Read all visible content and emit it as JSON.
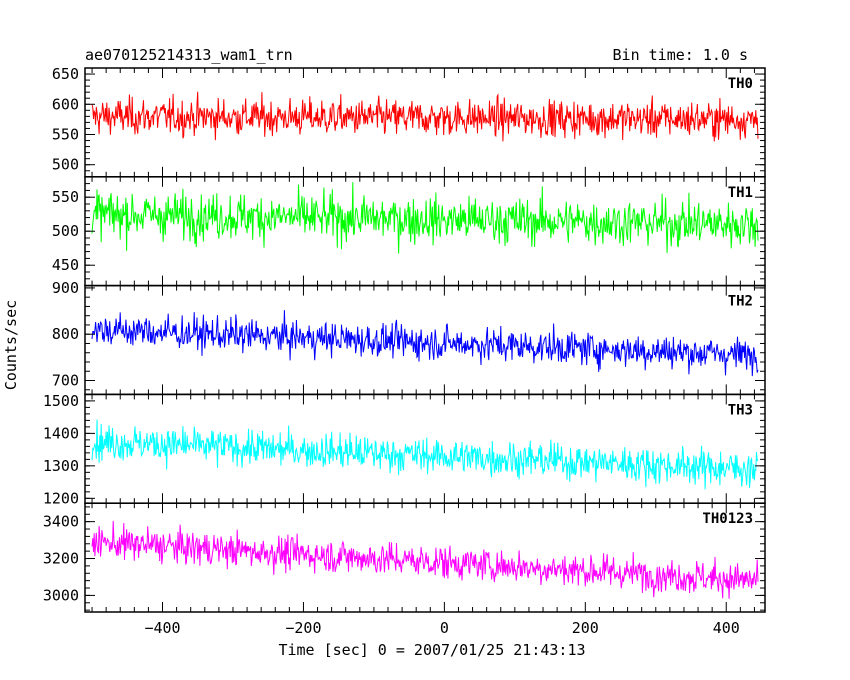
{
  "chart_data": {
    "type": "line",
    "title": "ae070125214313_wam1_trn",
    "bin_time": "Bin time: 1.0 s",
    "xlabel": "Time [sec] 0 = 2007/01/25 21:43:13",
    "ylabel": "Counts/sec",
    "xlim": [
      -510,
      455
    ],
    "x_ticks": [
      -400,
      -200,
      0,
      200,
      400
    ],
    "x_range": [
      -500,
      445
    ],
    "bin_seconds": 1,
    "panels": [
      {
        "name": "TH0",
        "color": "#ff0000",
        "ylim": [
          480,
          660
        ],
        "y_ticks": [
          500,
          550,
          600,
          650
        ],
        "trend_start": 580,
        "trend_end": 575,
        "noise_amp": 25
      },
      {
        "name": "TH1",
        "color": "#00ff00",
        "ylim": [
          420,
          580
        ],
        "y_ticks": [
          450,
          500,
          550
        ],
        "trend_start": 525,
        "trend_end": 510,
        "noise_amp": 28
      },
      {
        "name": "TH2",
        "color": "#0000ff",
        "ylim": [
          670,
          905
        ],
        "y_ticks": [
          700,
          800,
          900
        ],
        "trend_start": 810,
        "trend_end": 755,
        "noise_amp": 30
      },
      {
        "name": "TH3",
        "color": "#00ffff",
        "ylim": [
          1185,
          1520
        ],
        "y_ticks": [
          1200,
          1300,
          1400,
          1500
        ],
        "trend_start": 1375,
        "trend_end": 1290,
        "noise_amp": 45
      },
      {
        "name": "TH0123",
        "color": "#ff00ff",
        "ylim": [
          2910,
          3500
        ],
        "y_ticks": [
          3000,
          3200,
          3400
        ],
        "trend_start": 3290,
        "trend_end": 3080,
        "noise_amp": 75
      }
    ]
  }
}
